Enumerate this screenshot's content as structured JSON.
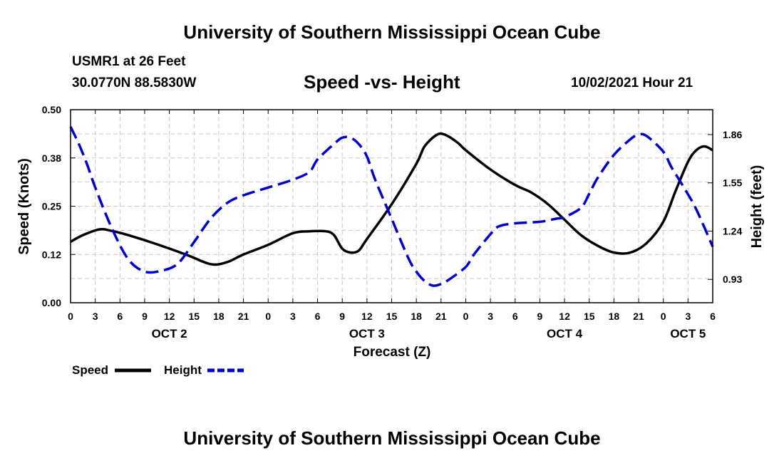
{
  "header": {
    "title": "University of Southern Mississippi Ocean Cube",
    "station": "USMR1 at 26 Feet",
    "coordinates": "30.0770N  88.5830W",
    "chart_title": "Speed -vs- Height",
    "datetime": "10/02/2021 Hour 21"
  },
  "footer": {
    "title": "University of Southern Mississippi Ocean Cube"
  },
  "colors": {
    "speed": "#000000",
    "height": "#0000cc",
    "grid": "#c8c8c8"
  },
  "chart_data": {
    "type": "line",
    "title": "Speed -vs- Height",
    "xlabel": "Forecast (Z)",
    "ylabel": "Speed (Knots)",
    "y2label": "Height (feet)",
    "grid": true,
    "x_range_hours": [
      0,
      78
    ],
    "ylim": [
      0,
      0.5
    ],
    "y2lim": [
      0.78,
      2.02
    ],
    "x_ticks": [
      {
        "h": 0,
        "label": "0"
      },
      {
        "h": 3,
        "label": "3"
      },
      {
        "h": 6,
        "label": "6"
      },
      {
        "h": 9,
        "label": "9"
      },
      {
        "h": 12,
        "label": "12"
      },
      {
        "h": 15,
        "label": "15"
      },
      {
        "h": 18,
        "label": "18"
      },
      {
        "h": 21,
        "label": "21"
      },
      {
        "h": 24,
        "label": "0"
      },
      {
        "h": 27,
        "label": "3"
      },
      {
        "h": 30,
        "label": "6"
      },
      {
        "h": 33,
        "label": "9"
      },
      {
        "h": 36,
        "label": "12"
      },
      {
        "h": 39,
        "label": "15"
      },
      {
        "h": 42,
        "label": "18"
      },
      {
        "h": 45,
        "label": "21"
      },
      {
        "h": 48,
        "label": "0"
      },
      {
        "h": 51,
        "label": "3"
      },
      {
        "h": 54,
        "label": "6"
      },
      {
        "h": 57,
        "label": "9"
      },
      {
        "h": 60,
        "label": "12"
      },
      {
        "h": 63,
        "label": "15"
      },
      {
        "h": 66,
        "label": "18"
      },
      {
        "h": 69,
        "label": "21"
      },
      {
        "h": 72,
        "label": "0"
      },
      {
        "h": 75,
        "label": "3"
      },
      {
        "h": 78,
        "label": "6"
      }
    ],
    "day_labels": [
      {
        "h": 12,
        "label": "OCT 2"
      },
      {
        "h": 36,
        "label": "OCT 3"
      },
      {
        "h": 60,
        "label": "OCT 4"
      },
      {
        "h": 75,
        "label": "OCT 5"
      }
    ],
    "y_ticks": [
      {
        "v": 0.0,
        "label": "0.00"
      },
      {
        "v": 0.125,
        "label": "0.12"
      },
      {
        "v": 0.25,
        "label": "0.25"
      },
      {
        "v": 0.375,
        "label": "0.38"
      },
      {
        "v": 0.5,
        "label": "0.50"
      }
    ],
    "y2_ticks": [
      {
        "v": 0.93,
        "label": "0.93"
      },
      {
        "v": 1.24,
        "label": "1.24"
      },
      {
        "v": 1.55,
        "label": "1.55"
      },
      {
        "v": 1.86,
        "label": "1.86"
      }
    ],
    "series": [
      {
        "name": "Speed",
        "axis": "left",
        "style": "solid",
        "points": [
          [
            0,
            0.158
          ],
          [
            1.5,
            0.175
          ],
          [
            3.5,
            0.19
          ],
          [
            5,
            0.186
          ],
          [
            7,
            0.175
          ],
          [
            10,
            0.155
          ],
          [
            14,
            0.125
          ],
          [
            17,
            0.1
          ],
          [
            19,
            0.105
          ],
          [
            21,
            0.125
          ],
          [
            24,
            0.15
          ],
          [
            27,
            0.18
          ],
          [
            29,
            0.185
          ],
          [
            31,
            0.185
          ],
          [
            32,
            0.175
          ],
          [
            33,
            0.14
          ],
          [
            34,
            0.13
          ],
          [
            35,
            0.135
          ],
          [
            36,
            0.165
          ],
          [
            39,
            0.255
          ],
          [
            42,
            0.36
          ],
          [
            43,
            0.405
          ],
          [
            44.5,
            0.435
          ],
          [
            45.5,
            0.435
          ],
          [
            47,
            0.415
          ],
          [
            48,
            0.395
          ],
          [
            51,
            0.345
          ],
          [
            54,
            0.305
          ],
          [
            56,
            0.285
          ],
          [
            58,
            0.255
          ],
          [
            60,
            0.215
          ],
          [
            62,
            0.175
          ],
          [
            64,
            0.148
          ],
          [
            66,
            0.13
          ],
          [
            68,
            0.13
          ],
          [
            70,
            0.155
          ],
          [
            72,
            0.21
          ],
          [
            73.5,
            0.29
          ],
          [
            75,
            0.365
          ],
          [
            76,
            0.395
          ],
          [
            77,
            0.405
          ],
          [
            78,
            0.395
          ]
        ]
      },
      {
        "name": "Height",
        "axis": "right",
        "style": "dashed",
        "points": [
          [
            0,
            1.91
          ],
          [
            1,
            1.8
          ],
          [
            2,
            1.67
          ],
          [
            3,
            1.52
          ],
          [
            5,
            1.26
          ],
          [
            7,
            1.06
          ],
          [
            9,
            0.98
          ],
          [
            11,
            0.985
          ],
          [
            13,
            1.03
          ],
          [
            15,
            1.17
          ],
          [
            17,
            1.32
          ],
          [
            19,
            1.42
          ],
          [
            21,
            1.47
          ],
          [
            24,
            1.52
          ],
          [
            27,
            1.57
          ],
          [
            29,
            1.62
          ],
          [
            30,
            1.7
          ],
          [
            32,
            1.8
          ],
          [
            33,
            1.84
          ],
          [
            34,
            1.84
          ],
          [
            35,
            1.8
          ],
          [
            36,
            1.72
          ],
          [
            37,
            1.57
          ],
          [
            39,
            1.32
          ],
          [
            41,
            1.07
          ],
          [
            42,
            0.98
          ],
          [
            43,
            0.92
          ],
          [
            44,
            0.89
          ],
          [
            45,
            0.9
          ],
          [
            46,
            0.93
          ],
          [
            48,
            1.01
          ],
          [
            49,
            1.09
          ],
          [
            51,
            1.22
          ],
          [
            52,
            1.27
          ],
          [
            54,
            1.29
          ],
          [
            57,
            1.3
          ],
          [
            59,
            1.32
          ],
          [
            60,
            1.33
          ],
          [
            62,
            1.39
          ],
          [
            63,
            1.48
          ],
          [
            64,
            1.58
          ],
          [
            66,
            1.73
          ],
          [
            68,
            1.83
          ],
          [
            69,
            1.86
          ],
          [
            70,
            1.85
          ],
          [
            72,
            1.75
          ],
          [
            73,
            1.65
          ],
          [
            74.5,
            1.52
          ],
          [
            76,
            1.38
          ],
          [
            78,
            1.14
          ]
        ]
      }
    ],
    "legend": [
      {
        "name": "Speed",
        "style": "solid"
      },
      {
        "name": "Height",
        "style": "dashed"
      }
    ]
  }
}
